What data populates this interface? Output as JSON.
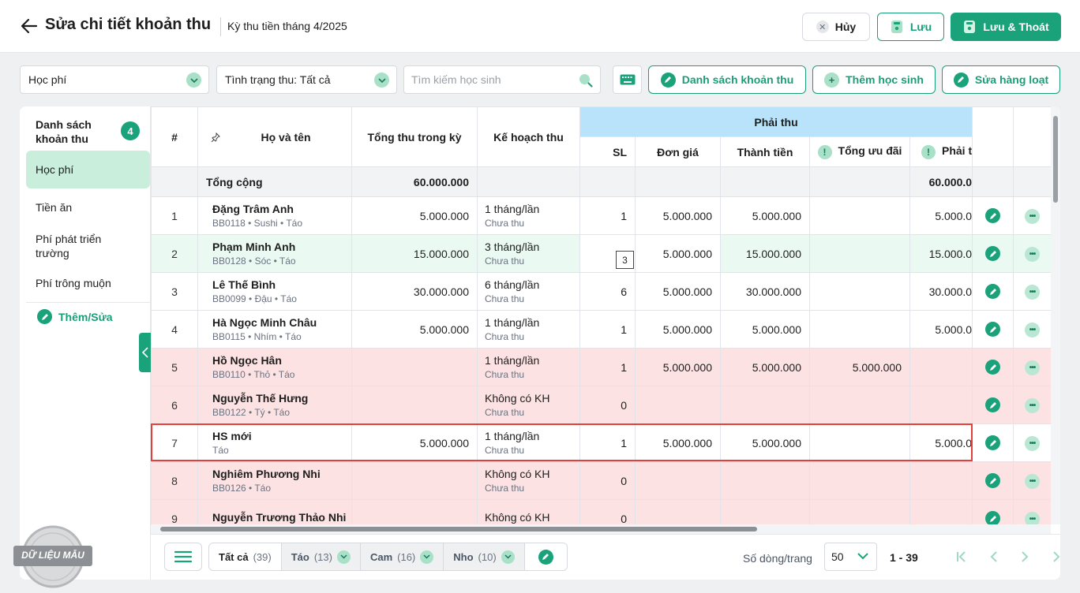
{
  "header": {
    "title": "Sửa chi tiết khoản thu",
    "subtitle": "Kỳ thu tiền tháng 4/2025",
    "cancel_label": "Hủy",
    "save_label": "Lưu",
    "save_exit_label": "Lưu & Thoát"
  },
  "filters": {
    "fee_select": "Học phí",
    "status_select": "Tình trạng thu: Tất cả",
    "search_placeholder": "Tìm kiếm học sinh",
    "list_button": "Danh sách khoản thu",
    "add_student_button": "Thêm học sinh",
    "bulk_edit_button": "Sửa hàng loạt"
  },
  "sidebar": {
    "title": "Danh sách khoản thu",
    "count": "4",
    "items": [
      {
        "label": "Học phí"
      },
      {
        "label": "Tiền ăn"
      },
      {
        "label": "Phí phát triển trường"
      },
      {
        "label": "Phí trông muộn"
      }
    ],
    "edit_label": "Thêm/Sửa"
  },
  "table": {
    "headers": {
      "idx": "#",
      "name": "Họ và tên",
      "total": "Tổng thu trong kỳ",
      "plan": "Kế hoạch thu",
      "group": "Phải thu",
      "qty": "SL",
      "price": "Đơn giá",
      "amount": "Thành tiền",
      "discount": "Tổng ưu đãi",
      "payable": "Phải t"
    },
    "total_row": {
      "label": "Tổng cộng",
      "total": "60.000.000",
      "payable": "60.000.0"
    },
    "rows": [
      {
        "idx": "1",
        "name": "Đặng Trâm Anh",
        "meta": "BB0118 • Sushi • Táo",
        "total": "5.000.000",
        "plan": "1 tháng/lần",
        "plan_status": "Chưa thu",
        "qty": "1",
        "price": "5.000.000",
        "amount": "5.000.000",
        "discount": "",
        "payable": "5.000.0"
      },
      {
        "idx": "2",
        "name": "Phạm Minh Anh",
        "meta": "BB0128 • Sóc • Táo",
        "total": "15.000.000",
        "plan": "3 tháng/lần",
        "plan_status": "Chưa thu",
        "qty": "3",
        "price": "5.000.000",
        "amount": "15.000.000",
        "discount": "",
        "payable": "15.000.0"
      },
      {
        "idx": "3",
        "name": "Lê Thế Bình",
        "meta": "BB0099 • Đậu • Táo",
        "total": "30.000.000",
        "plan": "6 tháng/lần",
        "plan_status": "Chưa thu",
        "qty": "6",
        "price": "5.000.000",
        "amount": "30.000.000",
        "discount": "",
        "payable": "30.000.0"
      },
      {
        "idx": "4",
        "name": "Hà Ngọc Minh Châu",
        "meta": "BB0115 • Nhím • Táo",
        "total": "5.000.000",
        "plan": "1 tháng/lần",
        "plan_status": "Chưa thu",
        "qty": "1",
        "price": "5.000.000",
        "amount": "5.000.000",
        "discount": "",
        "payable": "5.000.0"
      },
      {
        "idx": "5",
        "name": "Hồ Ngọc Hân",
        "meta": "BB0110 • Thỏ • Táo",
        "total": "",
        "plan": "1 tháng/lần",
        "plan_status": "Chưa thu",
        "qty": "1",
        "price": "5.000.000",
        "amount": "5.000.000",
        "discount": "5.000.000",
        "payable": ""
      },
      {
        "idx": "6",
        "name": "Nguyễn Thế Hưng",
        "meta": "BB0122 • Tý • Táo",
        "total": "",
        "plan": "Không có KH",
        "plan_status": "Chưa thu",
        "qty": "0",
        "price": "",
        "amount": "",
        "discount": "",
        "payable": ""
      },
      {
        "idx": "7",
        "name": "HS mới",
        "meta": "Táo",
        "total": "5.000.000",
        "plan": "1 tháng/lần",
        "plan_status": "Chưa thu",
        "qty": "1",
        "price": "5.000.000",
        "amount": "5.000.000",
        "discount": "",
        "payable": "5.000.0"
      },
      {
        "idx": "8",
        "name": "Nghiêm Phương Nhi",
        "meta": "BB0126 • Táo",
        "total": "",
        "plan": "Không có KH",
        "plan_status": "Chưa thu",
        "qty": "0",
        "price": "",
        "amount": "",
        "discount": "",
        "payable": ""
      },
      {
        "idx": "9",
        "name": "Nguyễn Trương Thảo Nhi",
        "meta": "",
        "total": "",
        "plan": "Không có KH",
        "plan_status": "",
        "qty": "0",
        "price": "",
        "amount": "",
        "discount": "",
        "payable": ""
      }
    ],
    "edit_value": "3"
  },
  "footer": {
    "tabs": [
      {
        "label": "Tất cả",
        "count": "(39)"
      },
      {
        "label": "Táo",
        "count": "(13)"
      },
      {
        "label": "Cam",
        "count": "(16)"
      },
      {
        "label": "Nho",
        "count": "(10)"
      }
    ],
    "rows_per_page_label": "Số dòng/trang",
    "rows_per_page": "50",
    "range": "1 - 39"
  },
  "watermark": "DỮ LIỆU MẪU",
  "colors": {
    "accent": "#1aa37a",
    "header_group": "#b8e3fb",
    "row_pink": "#fde2e4",
    "row_green": "#eafaf3",
    "highlight": "#e3403b"
  }
}
